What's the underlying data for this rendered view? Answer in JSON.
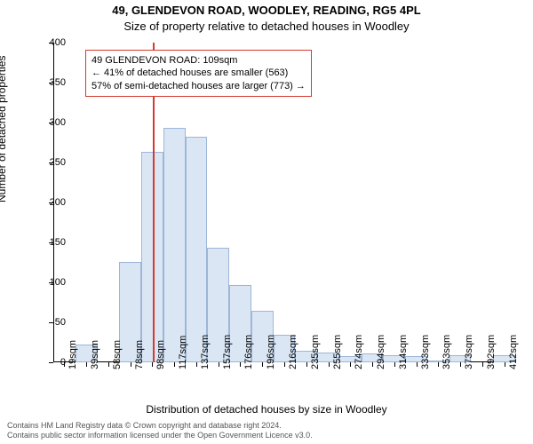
{
  "chart": {
    "type": "histogram",
    "title_main": "49, GLENDEVON ROAD, WOODLEY, READING, RG5 4PL",
    "title_sub": "Size of property relative to detached houses in Woodley",
    "title_fontsize": 13,
    "xlabel": "Distribution of detached houses by size in Woodley",
    "ylabel": "Number of detached properties",
    "label_fontsize": 12,
    "tick_fontsize": 11,
    "background_color": "#ffffff",
    "bar_fill": "#dbe6f4",
    "bar_stroke": "#9cb6d8",
    "bar_stroke_width": 1,
    "marker_color": "#d43a2f",
    "annotation_border": "#d43a2f",
    "annotation_bg": "#ffffff",
    "axis_color": "#000000",
    "ylim": [
      0,
      400
    ],
    "yticks": [
      0,
      50,
      100,
      150,
      200,
      250,
      300,
      350,
      400
    ],
    "xticks": [
      "19sqm",
      "39sqm",
      "58sqm",
      "78sqm",
      "98sqm",
      "117sqm",
      "137sqm",
      "157sqm",
      "176sqm",
      "196sqm",
      "216sqm",
      "235sqm",
      "255sqm",
      "274sqm",
      "294sqm",
      "314sqm",
      "333sqm",
      "353sqm",
      "373sqm",
      "392sqm",
      "412sqm"
    ],
    "values": [
      0,
      22,
      0,
      126,
      263,
      293,
      282,
      143,
      97,
      64,
      35,
      14,
      12,
      8,
      11,
      9,
      8,
      2,
      9,
      0,
      9
    ],
    "marker_bin_index": 4,
    "marker_position_in_bin": 0.56,
    "annotation": {
      "line1": "49 GLENDEVON ROAD: 109sqm",
      "line2": "← 41% of detached houses are smaller (563)",
      "line3": "57% of semi-detached houses are larger (773) →"
    },
    "footer_line1": "Contains HM Land Registry data © Crown copyright and database right 2024.",
    "footer_line2": "Contains public sector information licensed under the Open Government Licence v3.0."
  }
}
